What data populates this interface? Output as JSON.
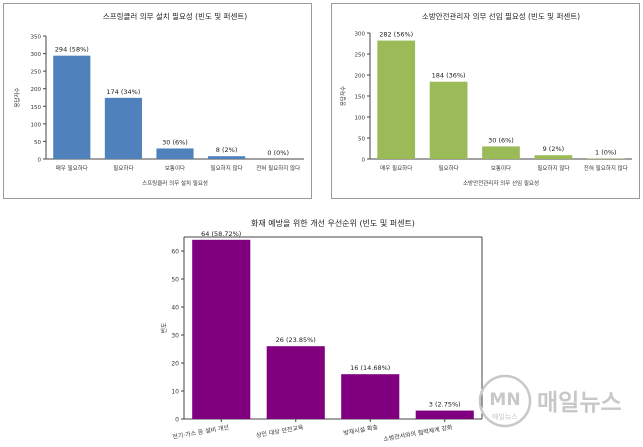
{
  "chart_data": [
    {
      "type": "bar",
      "title": "스프링클러 의무 설치 필요성 (빈도 및 퍼센트)",
      "xlabel": "스프링클러 의무 설치 필요성",
      "ylabel": "응답자수",
      "categories": [
        "매우 필요하다",
        "필요하다",
        "보통이다",
        "필요하지 않다",
        "전혀 필요하지 않다"
      ],
      "values": [
        294,
        174,
        30,
        8,
        0
      ],
      "data_labels": [
        "294 (58%)",
        "174 (34%)",
        "30 (6%)",
        "8 (2%)",
        "0 (0%)"
      ],
      "ylim": [
        0,
        350
      ],
      "yticks": [
        0,
        50,
        100,
        150,
        200,
        250,
        300,
        350
      ],
      "color": "#4f81bd",
      "grid": false
    },
    {
      "type": "bar",
      "title": "소방안전관리자 의무 선임 필요성 (빈도 및 퍼센트)",
      "xlabel": "소방안전관리자 의무 선임 필요성",
      "ylabel": "응답자수",
      "categories": [
        "매우 필요하다",
        "필요하다",
        "보통이다",
        "필요하지 않다",
        "전혀 필요하지 않다"
      ],
      "values": [
        282,
        184,
        30,
        9,
        1
      ],
      "data_labels": [
        "282 (56%)",
        "184 (36%)",
        "30 (6%)",
        "9 (2%)",
        "1 (0%)"
      ],
      "ylim": [
        0,
        300
      ],
      "yticks": [
        0,
        50,
        100,
        150,
        200,
        250,
        300
      ],
      "color": "#9bbb59",
      "grid": false
    },
    {
      "type": "bar",
      "title": "화재 예방을 위한 개선 우선순위 (빈도 및 퍼센트)",
      "xlabel": "",
      "ylabel": "빈도",
      "categories": [
        "전기·가스 등 설비 개선",
        "상인 대상 안전교육",
        "방재시설 확충",
        "소방관서와의 협력체계 강화"
      ],
      "values": [
        64,
        26,
        16,
        3
      ],
      "data_labels": [
        "64 (58.72%)",
        "26 (23.85%)",
        "16 (14.68%)",
        "3 (2.75%)"
      ],
      "ylim": [
        0,
        65
      ],
      "yticks": [
        0,
        10,
        20,
        30,
        40,
        50,
        60
      ],
      "color": "#800080",
      "grid": false
    }
  ],
  "watermark": {
    "logo": "MN",
    "logo_sub": "매일뉴스",
    "text": "매일뉴스"
  }
}
